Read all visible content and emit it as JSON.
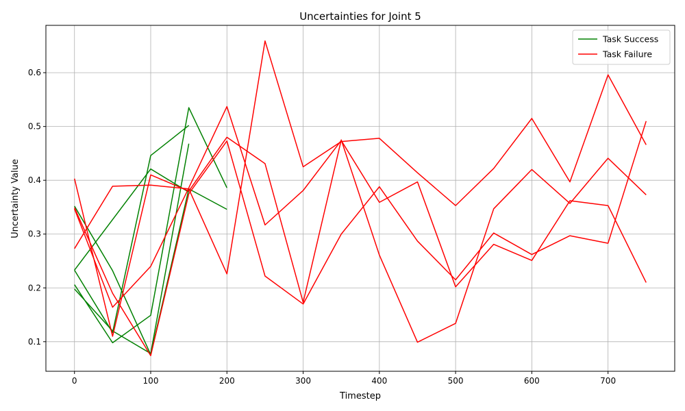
{
  "chart_data": {
    "type": "line",
    "title": "Uncertainties for Joint 5",
    "xlabel": "Timestep",
    "ylabel": "Uncertainty Value",
    "xlim": [
      -37.5,
      787.5
    ],
    "ylim": [
      0.045,
      0.688
    ],
    "xticks": [
      0,
      100,
      200,
      300,
      400,
      500,
      600,
      700
    ],
    "yticks": [
      0.1,
      0.2,
      0.3,
      0.4,
      0.5,
      0.6
    ],
    "ytick_labels": [
      "0.1",
      "0.2",
      "0.3",
      "0.4",
      "0.5",
      "0.6"
    ],
    "grid": true,
    "legend_position": "top-right",
    "legend": [
      {
        "label": "Task Success",
        "color": "#008000"
      },
      {
        "label": "Task Failure",
        "color": "#ff0000"
      }
    ],
    "series": [
      {
        "group": "success",
        "x": [
          0,
          50,
          100,
          150
        ],
        "y": [
          0.233,
          0.117,
          0.446,
          0.502
        ]
      },
      {
        "group": "success",
        "x": [
          0,
          50,
          100,
          150,
          200
        ],
        "y": [
          0.206,
          0.098,
          0.149,
          0.535,
          0.386
        ]
      },
      {
        "group": "success",
        "x": [
          0,
          50,
          100,
          150
        ],
        "y": [
          0.198,
          0.12,
          0.078,
          0.468
        ]
      },
      {
        "group": "success",
        "x": [
          0,
          50,
          100,
          150,
          200
        ],
        "y": [
          0.352,
          0.232,
          0.076,
          0.384,
          0.346
        ]
      },
      {
        "group": "success",
        "x": [
          0,
          100,
          150
        ],
        "y": [
          0.233,
          0.421,
          0.378
        ]
      },
      {
        "group": "failure",
        "x": [
          0,
          50,
          100,
          150,
          200,
          250,
          300,
          350,
          400,
          450,
          500,
          550,
          600,
          650,
          700,
          750
        ],
        "y": [
          0.403,
          0.11,
          0.41,
          0.38,
          0.48,
          0.431,
          0.173,
          0.475,
          0.261,
          0.099,
          0.134,
          0.347,
          0.42,
          0.357,
          0.441,
          0.373
        ]
      },
      {
        "group": "failure",
        "x": [
          0,
          50,
          100,
          150,
          200,
          250,
          300,
          350,
          400,
          450,
          500,
          550,
          600,
          650,
          700,
          750
        ],
        "y": [
          0.273,
          0.389,
          0.391,
          0.384,
          0.226,
          0.659,
          0.425,
          0.472,
          0.478,
          0.414,
          0.353,
          0.422,
          0.515,
          0.397,
          0.596,
          0.466
        ]
      },
      {
        "group": "failure",
        "x": [
          0,
          50,
          100,
          150,
          200,
          250,
          300,
          350,
          400,
          450,
          500,
          550,
          600,
          650,
          700,
          750
        ],
        "y": [
          0.347,
          0.164,
          0.24,
          0.386,
          0.537,
          0.317,
          0.381,
          0.474,
          0.359,
          0.397,
          0.202,
          0.281,
          0.251,
          0.362,
          0.353,
          0.21
        ]
      },
      {
        "group": "failure",
        "x": [
          0,
          50,
          100,
          150,
          200,
          250,
          300,
          350,
          400,
          450,
          500,
          550,
          600,
          650,
          700,
          750
        ],
        "y": [
          0.349,
          0.19,
          0.074,
          0.375,
          0.473,
          0.222,
          0.17,
          0.3,
          0.388,
          0.287,
          0.215,
          0.302,
          0.262,
          0.297,
          0.283,
          0.51
        ]
      }
    ]
  }
}
